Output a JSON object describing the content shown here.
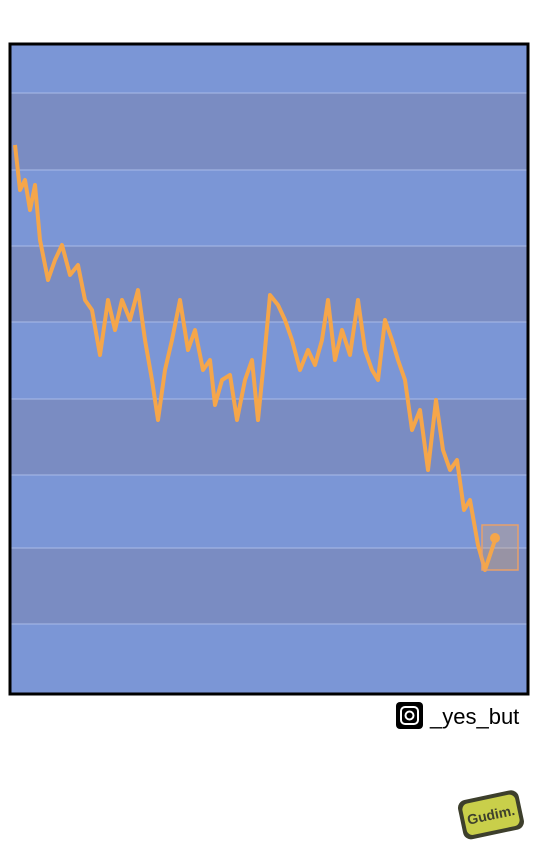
{
  "watermark": {
    "handle": "_yes_but",
    "logo": "Gudim."
  }
}
